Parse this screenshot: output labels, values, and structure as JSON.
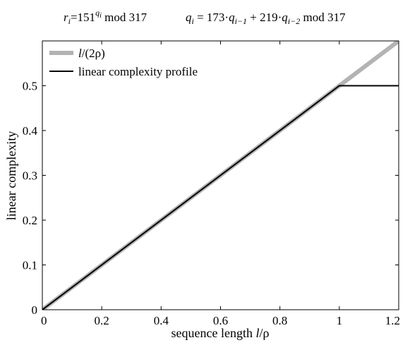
{
  "title": {
    "left": {
      "r": "r",
      "r_sub": "i",
      "eq": "=151",
      "exp_q": "q",
      "exp_sub": "i",
      "tail": " mod 317"
    },
    "right": {
      "q": "q",
      "q_sub": "i",
      "eq": " = 173·",
      "q1": "q",
      "q1_sub": "i−1",
      "plus": " + 219·",
      "q2": "q",
      "q2_sub": "i−2",
      "tail": " mod 317"
    }
  },
  "chart_data": {
    "type": "line",
    "xlabel_prefix": "sequence length ",
    "xlabel_italic": "l",
    "xlabel_suffix": "/ρ",
    "ylabel": "linear complexity",
    "xlim": [
      0,
      1.2
    ],
    "ylim": [
      0,
      0.6
    ],
    "xticks": [
      0,
      0.2,
      0.4,
      0.6,
      0.8,
      1,
      1.2
    ],
    "xtick_labels": [
      "0",
      "0.2",
      "0.4",
      "0.6",
      "0.8",
      "1",
      "1.2"
    ],
    "yticks": [
      0,
      0.1,
      0.2,
      0.3,
      0.4,
      0.5
    ],
    "ytick_labels": [
      "0",
      "0.1",
      "0.2",
      "0.3",
      "0.4",
      "0.5"
    ],
    "grid": false,
    "legend_position": "top-left",
    "series": [
      {
        "name_italic": "l",
        "name_rest": "/(2ρ)",
        "color": "#b3b3b3",
        "x": [
          0,
          1.2
        ],
        "y": [
          0,
          0.6
        ]
      },
      {
        "name": "linear complexity profile",
        "color": "#000000",
        "x": [
          0,
          1.0,
          1.2
        ],
        "y": [
          0,
          0.5,
          0.5
        ]
      }
    ]
  }
}
